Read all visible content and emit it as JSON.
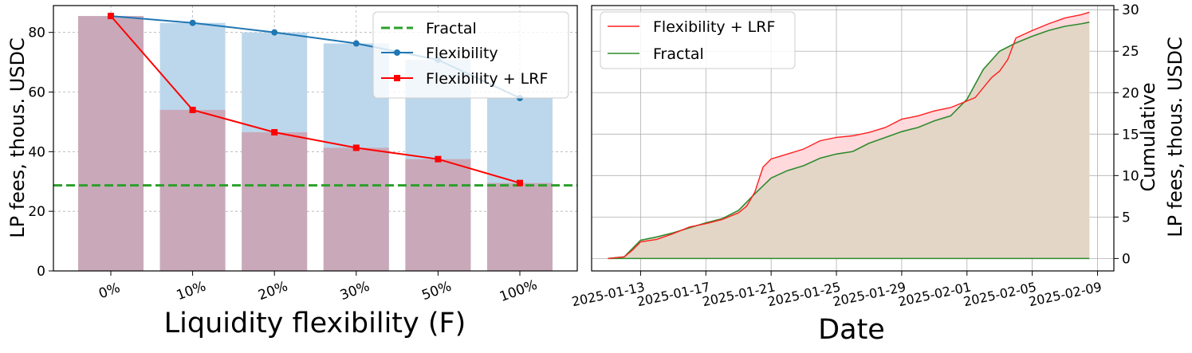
{
  "chart_data": [
    {
      "type": "bar",
      "xlabel": "Liquidity flexibility (F)",
      "ylabel": "LP fees, thous. USDC",
      "ylim": [
        0,
        89
      ],
      "yticks": [
        0,
        20,
        40,
        60,
        80
      ],
      "categories": [
        "0%",
        "10%",
        "20%",
        "30%",
        "50%",
        "100%"
      ],
      "grid": true,
      "legend_position": "top-right",
      "series": [
        {
          "name": "Flexibility",
          "kind": "bar+line",
          "color": "#1f77b4",
          "bar_color": "#bcd7eb",
          "marker": "circle",
          "values": [
            85.5,
            83.2,
            80.0,
            76.3,
            70.8,
            58.0
          ]
        },
        {
          "name": "Flexibility + LRF",
          "kind": "bar+line",
          "color": "#ff0000",
          "bar_color": "#c9a9b9",
          "marker": "square",
          "values": [
            85.5,
            54.0,
            46.5,
            41.3,
            37.5,
            29.5
          ]
        },
        {
          "name": "Fractal",
          "kind": "hline",
          "color": "#2ca02c",
          "style": "dashed",
          "value": 28.7
        }
      ]
    },
    {
      "type": "area",
      "xlabel": "Date",
      "ylabel": [
        "Cumulative",
        "LP fees, thous. USDC"
      ],
      "ylim": [
        -1.5,
        30.5
      ],
      "yticks": [
        0,
        5,
        10,
        15,
        20,
        25,
        30
      ],
      "xlim": [
        -1,
        31
      ],
      "x_tick_labels": [
        "2025-01-13",
        "2025-01-17",
        "2025-01-21",
        "2025-01-25",
        "2025-01-29",
        "2025-02-01",
        "2025-02-05",
        "2025-02-09"
      ],
      "x_tick_positions": [
        2,
        6,
        10,
        14,
        18,
        22,
        26,
        30
      ],
      "grid": true,
      "legend_position": "top-left",
      "series": [
        {
          "name": "Flexibility + LRF",
          "color": "#ff2020",
          "fill": "#ffd9dc",
          "x": [
            0,
            1,
            1.5,
            2,
            3,
            4,
            5,
            6,
            7,
            8,
            8.5,
            9,
            9.5,
            10,
            11,
            12,
            13,
            14,
            15,
            16,
            17,
            18,
            19,
            20,
            21,
            22,
            22.5,
            23,
            23.5,
            24,
            24.5,
            25,
            26,
            27,
            28,
            29,
            29.5
          ],
          "y": [
            0,
            0.2,
            1.0,
            2.0,
            2.3,
            3.0,
            3.8,
            4.2,
            4.7,
            5.5,
            6.3,
            8.0,
            11.0,
            12.0,
            12.6,
            13.2,
            14.2,
            14.6,
            14.8,
            15.2,
            15.8,
            16.8,
            17.2,
            17.8,
            18.2,
            19.0,
            19.4,
            20.6,
            21.8,
            22.6,
            24.0,
            26.6,
            27.5,
            28.3,
            29.0,
            29.4,
            29.7
          ]
        },
        {
          "name": "Fractal",
          "color": "#2e8b2e",
          "fill": "#e3d6c6",
          "x": [
            0,
            1,
            2,
            3,
            4,
            5,
            6,
            7,
            8,
            9,
            10,
            11,
            12,
            13,
            14,
            15,
            16,
            17,
            18,
            19,
            20,
            21,
            22,
            23,
            24,
            25,
            26,
            27,
            28,
            29,
            29.5
          ],
          "y": [
            0,
            0.2,
            2.2,
            2.6,
            3.1,
            3.7,
            4.3,
            4.8,
            5.8,
            7.8,
            9.7,
            10.6,
            11.2,
            12.1,
            12.6,
            12.9,
            13.9,
            14.6,
            15.3,
            15.8,
            16.6,
            17.2,
            19.2,
            22.8,
            25.0,
            26.0,
            26.8,
            27.5,
            28.0,
            28.3,
            28.5
          ]
        }
      ]
    }
  ]
}
